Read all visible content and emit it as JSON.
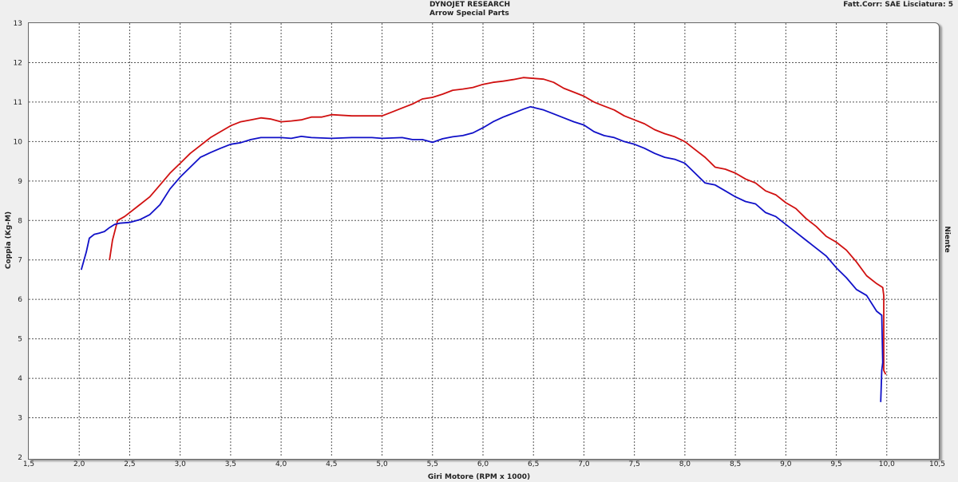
{
  "header": {
    "title": "DYNOJET RESEARCH",
    "subtitle": "Arrow Special Parts",
    "correction": "Fatt.Corr: SAE  Lisciatura: 5",
    "side_label": "Niente"
  },
  "chart_data": {
    "type": "line",
    "title": "DYNOJET RESEARCH",
    "xlabel": "Giri Motore (RPM x 1000)",
    "ylabel": "Coppia (Kg-M)",
    "xlim": [
      1.5,
      10.5
    ],
    "ylim": [
      2,
      13
    ],
    "xticks": [
      "1,5",
      "2,0",
      "2,5",
      "3,0",
      "3,5",
      "4,0",
      "4,5",
      "5,0",
      "5,5",
      "6,0",
      "6,5",
      "7,0",
      "7,5",
      "8,0",
      "8,5",
      "9,0",
      "9,5",
      "10,0",
      "10,5"
    ],
    "yticks": [
      "2",
      "3",
      "4",
      "5",
      "6",
      "7",
      "8",
      "9",
      "10",
      "11",
      "12",
      "13"
    ],
    "grid": true,
    "legend": "none",
    "series": [
      {
        "color": "#d01010",
        "x": [
          2.3,
          2.33,
          2.38,
          2.45,
          2.5,
          2.6,
          2.7,
          2.8,
          2.9,
          3.0,
          3.1,
          3.2,
          3.3,
          3.4,
          3.5,
          3.6,
          3.7,
          3.8,
          3.9,
          4.0,
          4.1,
          4.2,
          4.3,
          4.4,
          4.5,
          4.7,
          4.9,
          5.0,
          5.1,
          5.2,
          5.3,
          5.4,
          5.5,
          5.6,
          5.7,
          5.8,
          5.9,
          6.0,
          6.1,
          6.2,
          6.3,
          6.4,
          6.5,
          6.6,
          6.7,
          6.8,
          6.9,
          7.0,
          7.1,
          7.2,
          7.3,
          7.4,
          7.5,
          7.6,
          7.7,
          7.8,
          7.9,
          8.0,
          8.1,
          8.2,
          8.3,
          8.4,
          8.5,
          8.6,
          8.7,
          8.8,
          8.9,
          9.0,
          9.1,
          9.2,
          9.3,
          9.4,
          9.5,
          9.6,
          9.7,
          9.8,
          9.9,
          9.96,
          9.97,
          9.97,
          9.97,
          9.99
        ],
        "y": [
          7.0,
          7.5,
          8.0,
          8.1,
          8.2,
          8.4,
          8.6,
          8.9,
          9.2,
          9.45,
          9.7,
          9.9,
          10.1,
          10.25,
          10.4,
          10.5,
          10.55,
          10.6,
          10.57,
          10.5,
          10.52,
          10.55,
          10.62,
          10.62,
          10.68,
          10.65,
          10.65,
          10.65,
          10.75,
          10.85,
          10.95,
          11.08,
          11.12,
          11.2,
          11.3,
          11.33,
          11.37,
          11.45,
          11.5,
          11.53,
          11.57,
          11.62,
          11.6,
          11.58,
          11.5,
          11.35,
          11.25,
          11.15,
          11.0,
          10.9,
          10.8,
          10.65,
          10.55,
          10.45,
          10.3,
          10.2,
          10.12,
          10.0,
          9.8,
          9.6,
          9.35,
          9.3,
          9.2,
          9.05,
          8.95,
          8.75,
          8.65,
          8.45,
          8.3,
          8.05,
          7.85,
          7.6,
          7.45,
          7.25,
          6.95,
          6.6,
          6.4,
          6.3,
          6.1,
          4.8,
          4.2,
          4.1
        ]
      },
      {
        "color": "#1010c8",
        "x": [
          2.02,
          2.07,
          2.1,
          2.15,
          2.2,
          2.25,
          2.3,
          2.35,
          2.4,
          2.5,
          2.6,
          2.7,
          2.8,
          2.9,
          3.0,
          3.1,
          3.2,
          3.3,
          3.4,
          3.5,
          3.6,
          3.7,
          3.8,
          3.9,
          4.0,
          4.1,
          4.2,
          4.3,
          4.5,
          4.7,
          4.9,
          5.0,
          5.2,
          5.3,
          5.4,
          5.5,
          5.6,
          5.7,
          5.8,
          5.9,
          6.0,
          6.1,
          6.2,
          6.3,
          6.4,
          6.47,
          6.6,
          6.7,
          6.8,
          6.9,
          7.0,
          7.1,
          7.2,
          7.3,
          7.4,
          7.5,
          7.6,
          7.7,
          7.8,
          7.9,
          8.0,
          8.1,
          8.2,
          8.3,
          8.4,
          8.5,
          8.6,
          8.7,
          8.8,
          8.9,
          9.0,
          9.1,
          9.2,
          9.3,
          9.4,
          9.5,
          9.6,
          9.7,
          9.8,
          9.9,
          9.95,
          9.96,
          9.95,
          9.94
        ],
        "y": [
          6.75,
          7.2,
          7.55,
          7.65,
          7.68,
          7.72,
          7.82,
          7.9,
          7.93,
          7.95,
          8.02,
          8.15,
          8.4,
          8.8,
          9.1,
          9.35,
          9.6,
          9.72,
          9.83,
          9.93,
          9.97,
          10.05,
          10.1,
          10.1,
          10.1,
          10.08,
          10.13,
          10.1,
          10.08,
          10.1,
          10.1,
          10.08,
          10.1,
          10.05,
          10.05,
          9.98,
          10.07,
          10.12,
          10.15,
          10.22,
          10.35,
          10.5,
          10.62,
          10.72,
          10.82,
          10.88,
          10.8,
          10.7,
          10.6,
          10.5,
          10.42,
          10.25,
          10.15,
          10.1,
          10.0,
          9.93,
          9.83,
          9.7,
          9.6,
          9.55,
          9.45,
          9.2,
          8.95,
          8.9,
          8.75,
          8.6,
          8.48,
          8.42,
          8.2,
          8.1,
          7.9,
          7.7,
          7.5,
          7.3,
          7.1,
          6.8,
          6.55,
          6.25,
          6.1,
          5.7,
          5.6,
          4.4,
          4.2,
          3.4
        ]
      }
    ]
  }
}
